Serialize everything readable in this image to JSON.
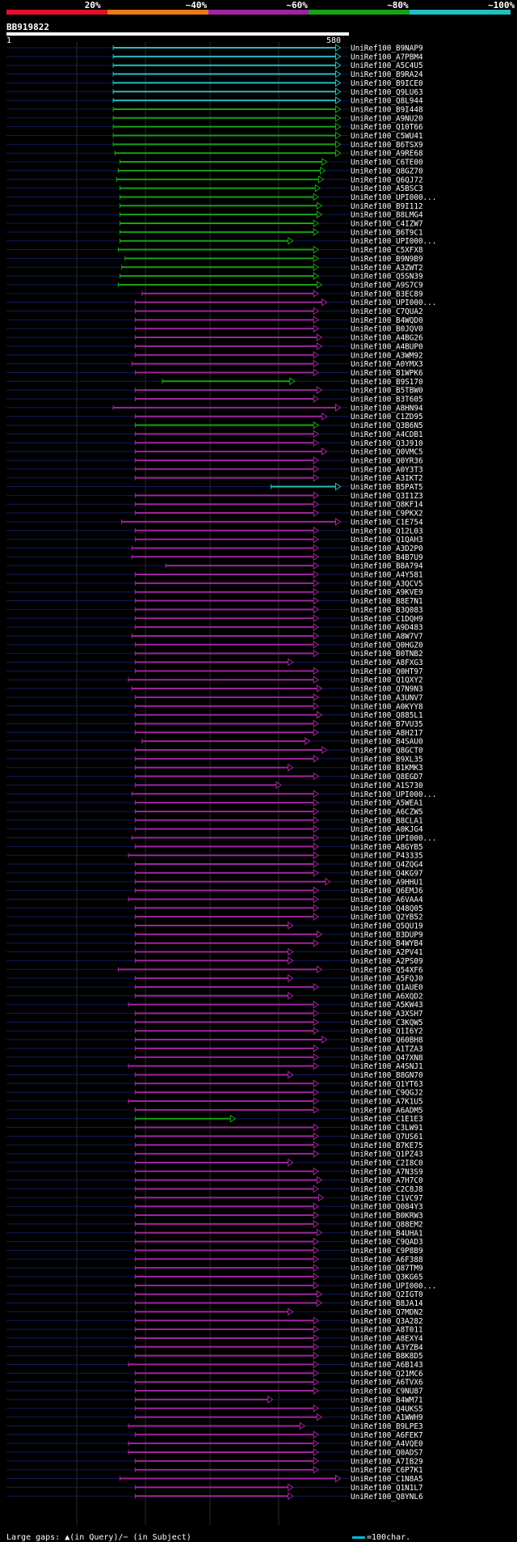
{
  "legend": {
    "labels": [
      "20%",
      "~40%",
      "~60%",
      "~80%",
      "~100%"
    ],
    "colors": [
      "#e0112b",
      "#e87a1a",
      "#a0249f",
      "#17a116",
      "#22bfbf"
    ]
  },
  "query": {
    "name": "BB919822",
    "start": "1",
    "end": "580"
  },
  "hits": [
    {
      "label": "UniRef100_B9NAP9",
      "start": 0.305,
      "end": 0.975,
      "color": "#22bfbf"
    },
    {
      "label": "UniRef100_A7PBM4",
      "start": 0.305,
      "end": 0.975,
      "color": "#22bfbf"
    },
    {
      "label": "UniRef100_A5C4U5",
      "start": 0.305,
      "end": 0.975,
      "color": "#22bfbf"
    },
    {
      "label": "UniRef100_B9RA24",
      "start": 0.305,
      "end": 0.975,
      "color": "#22bfbf"
    },
    {
      "label": "UniRef100_B9ICE0",
      "start": 0.305,
      "end": 0.975,
      "color": "#22bfbf"
    },
    {
      "label": "UniRef100_Q9LU63",
      "start": 0.305,
      "end": 0.975,
      "color": "#22bfbf"
    },
    {
      "label": "UniRef100_Q8L944",
      "start": 0.305,
      "end": 0.975,
      "color": "#22bfbf"
    },
    {
      "label": "UniRef100_B9I448",
      "start": 0.305,
      "end": 0.975,
      "color": "#17a116"
    },
    {
      "label": "UniRef100_A9NU20",
      "start": 0.305,
      "end": 0.975,
      "color": "#17a116"
    },
    {
      "label": "UniRef100_Q10T66",
      "start": 0.305,
      "end": 0.975,
      "color": "#17a116"
    },
    {
      "label": "UniRef100_C5WU41",
      "start": 0.305,
      "end": 0.975,
      "color": "#17a116"
    },
    {
      "label": "UniRef100_B6TSX9",
      "start": 0.305,
      "end": 0.975,
      "color": "#17a116"
    },
    {
      "label": "UniRef100_A9RE68",
      "start": 0.31,
      "end": 0.975,
      "color": "#17a116"
    },
    {
      "label": "UniRef100_C6TE00",
      "start": 0.325,
      "end": 0.935,
      "color": "#17a116"
    },
    {
      "label": "UniRef100_Q8GZ70",
      "start": 0.32,
      "end": 0.93,
      "color": "#17a116"
    },
    {
      "label": "UniRef100_Q6QJ72",
      "start": 0.315,
      "end": 0.925,
      "color": "#17a116"
    },
    {
      "label": "UniRef100_A5BSC3",
      "start": 0.325,
      "end": 0.915,
      "color": "#17a116"
    },
    {
      "label": "UniRef100_UPI000...",
      "start": 0.325,
      "end": 0.91,
      "color": "#17a116"
    },
    {
      "label": "UniRef100_B9I112",
      "start": 0.325,
      "end": 0.92,
      "color": "#17a116"
    },
    {
      "label": "UniRef100_B8LMG4",
      "start": 0.325,
      "end": 0.92,
      "color": "#17a116"
    },
    {
      "label": "UniRef100_C4IZW7",
      "start": 0.325,
      "end": 0.91,
      "color": "#17a116"
    },
    {
      "label": "UniRef100_B6T9C1",
      "start": 0.325,
      "end": 0.91,
      "color": "#17a116"
    },
    {
      "label": "UniRef100_UPI000...",
      "start": 0.325,
      "end": 0.835,
      "color": "#17a116"
    },
    {
      "label": "UniRef100_C5XFX8",
      "start": 0.32,
      "end": 0.91,
      "color": "#17a116"
    },
    {
      "label": "UniRef100_B9N9B9",
      "start": 0.34,
      "end": 0.91,
      "color": "#17a116"
    },
    {
      "label": "UniRef100_A3ZWT2",
      "start": 0.33,
      "end": 0.91,
      "color": "#17a116"
    },
    {
      "label": "UniRef100_Q5SN39",
      "start": 0.325,
      "end": 0.91,
      "color": "#17a116"
    },
    {
      "label": "UniRef100_A9S7C9",
      "start": 0.32,
      "end": 0.92,
      "color": "#17a116"
    },
    {
      "label": "UniRef100_B3EC89",
      "start": 0.39,
      "end": 0.91,
      "color": "#a0249f"
    },
    {
      "label": "UniRef100_UPI000...",
      "start": 0.37,
      "end": 0.935,
      "color": "#a0249f"
    },
    {
      "label": "UniRef100_C7QUA2",
      "start": 0.37,
      "end": 0.91,
      "color": "#a0249f"
    },
    {
      "label": "UniRef100_B4WQD0",
      "start": 0.37,
      "end": 0.91,
      "color": "#a0249f"
    },
    {
      "label": "UniRef100_B0JQV0",
      "start": 0.37,
      "end": 0.91,
      "color": "#a0249f"
    },
    {
      "label": "UniRef100_A4BG26",
      "start": 0.37,
      "end": 0.92,
      "color": "#a0249f"
    },
    {
      "label": "UniRef100_A4BUP0",
      "start": 0.37,
      "end": 0.92,
      "color": "#a0249f"
    },
    {
      "label": "UniRef100_A3WM92",
      "start": 0.37,
      "end": 0.91,
      "color": "#a0249f"
    },
    {
      "label": "UniRef100_A0YMX3",
      "start": 0.36,
      "end": 0.91,
      "color": "#a0249f"
    },
    {
      "label": "UniRef100_B1WPK6",
      "start": 0.37,
      "end": 0.91,
      "color": "#a0249f"
    },
    {
      "label": "UniRef100_B9S170",
      "start": 0.45,
      "end": 0.84,
      "color": "#17a116"
    },
    {
      "label": "UniRef100_B5TBW0",
      "start": 0.37,
      "end": 0.92,
      "color": "#a0249f"
    },
    {
      "label": "UniRef100_B3T605",
      "start": 0.37,
      "end": 0.91,
      "color": "#a0249f"
    },
    {
      "label": "UniRef100_A8HN94",
      "start": 0.305,
      "end": 0.975,
      "color": "#a0249f"
    },
    {
      "label": "UniRef100_C1ZD95",
      "start": 0.37,
      "end": 0.935,
      "color": "#a0249f"
    },
    {
      "label": "UniRef100_Q3B6N5",
      "start": 0.37,
      "end": 0.91,
      "color": "#17a116"
    },
    {
      "label": "UniRef100_A4CDB1",
      "start": 0.37,
      "end": 0.91,
      "color": "#a0249f"
    },
    {
      "label": "UniRef100_Q3J910",
      "start": 0.37,
      "end": 0.91,
      "color": "#a0249f"
    },
    {
      "label": "UniRef100_Q0VMC5",
      "start": 0.37,
      "end": 0.935,
      "color": "#a0249f"
    },
    {
      "label": "UniRef100_Q0YR36",
      "start": 0.37,
      "end": 0.91,
      "color": "#a0249f"
    },
    {
      "label": "UniRef100_A0Y3T3",
      "start": 0.37,
      "end": 0.91,
      "color": "#a0249f"
    },
    {
      "label": "UniRef100_A3IKT2",
      "start": 0.37,
      "end": 0.91,
      "color": "#a0249f"
    },
    {
      "label": "UniRef100_B5PAT5",
      "start": 0.77,
      "end": 0.975,
      "color": "#22bfbf"
    },
    {
      "label": "UniRef100_Q3I1Z3",
      "start": 0.37,
      "end": 0.91,
      "color": "#a0249f"
    },
    {
      "label": "UniRef100_Q8KF14",
      "start": 0.37,
      "end": 0.91,
      "color": "#a0249f"
    },
    {
      "label": "UniRef100_C9PKX2",
      "start": 0.37,
      "end": 0.91,
      "color": "#a0249f"
    },
    {
      "label": "UniRef100_C1E754",
      "start": 0.33,
      "end": 0.975,
      "color": "#a0249f"
    },
    {
      "label": "UniRef100_Q12L03",
      "start": 0.37,
      "end": 0.91,
      "color": "#a0249f"
    },
    {
      "label": "UniRef100_Q1QAH3",
      "start": 0.37,
      "end": 0.91,
      "color": "#a0249f"
    },
    {
      "label": "UniRef100_A3D2P0",
      "start": 0.36,
      "end": 0.91,
      "color": "#a0249f"
    },
    {
      "label": "UniRef100_B4B7U9",
      "start": 0.36,
      "end": 0.91,
      "color": "#a0249f"
    },
    {
      "label": "UniRef100_B8A794",
      "start": 0.46,
      "end": 0.91,
      "color": "#a0249f"
    },
    {
      "label": "UniRef100_A4Y581",
      "start": 0.37,
      "end": 0.91,
      "color": "#a0249f"
    },
    {
      "label": "UniRef100_A3QCV5",
      "start": 0.37,
      "end": 0.91,
      "color": "#a0249f"
    },
    {
      "label": "UniRef100_A9KVE9",
      "start": 0.37,
      "end": 0.91,
      "color": "#a0249f"
    },
    {
      "label": "UniRef100_B8E7N1",
      "start": 0.37,
      "end": 0.91,
      "color": "#a0249f"
    },
    {
      "label": "UniRef100_B3Q083",
      "start": 0.37,
      "end": 0.91,
      "color": "#a0249f"
    },
    {
      "label": "UniRef100_C1DQH9",
      "start": 0.37,
      "end": 0.91,
      "color": "#a0249f"
    },
    {
      "label": "UniRef100_A9D483",
      "start": 0.37,
      "end": 0.91,
      "color": "#a0249f"
    },
    {
      "label": "UniRef100_A8W7V7",
      "start": 0.36,
      "end": 0.91,
      "color": "#a0249f"
    },
    {
      "label": "UniRef100_Q0HGZ0",
      "start": 0.37,
      "end": 0.91,
      "color": "#a0249f"
    },
    {
      "label": "UniRef100_B0TNB2",
      "start": 0.37,
      "end": 0.91,
      "color": "#a0249f"
    },
    {
      "label": "UniRef100_A8FXG3",
      "start": 0.37,
      "end": 0.835,
      "color": "#a0249f"
    },
    {
      "label": "UniRef100_Q0HT97",
      "start": 0.37,
      "end": 0.91,
      "color": "#a0249f"
    },
    {
      "label": "UniRef100_Q1QXY2",
      "start": 0.35,
      "end": 0.91,
      "color": "#a0249f"
    },
    {
      "label": "UniRef100_Q7N9N3",
      "start": 0.36,
      "end": 0.92,
      "color": "#a0249f"
    },
    {
      "label": "UniRef100_A3UNV7",
      "start": 0.37,
      "end": 0.91,
      "color": "#a0249f"
    },
    {
      "label": "UniRef100_A0KYY8",
      "start": 0.37,
      "end": 0.91,
      "color": "#a0249f"
    },
    {
      "label": "UniRef100_Q885L1",
      "start": 0.37,
      "end": 0.92,
      "color": "#a0249f"
    },
    {
      "label": "UniRef100_B7VU35",
      "start": 0.37,
      "end": 0.91,
      "color": "#a0249f"
    },
    {
      "label": "UniRef100_A8H217",
      "start": 0.37,
      "end": 0.91,
      "color": "#a0249f"
    },
    {
      "label": "UniRef100_B4SAU0",
      "start": 0.39,
      "end": 0.885,
      "color": "#a0249f"
    },
    {
      "label": "UniRef100_Q8GCT0",
      "start": 0.37,
      "end": 0.935,
      "color": "#a0249f"
    },
    {
      "label": "UniRef100_B9XL35",
      "start": 0.37,
      "end": 0.91,
      "color": "#a0249f"
    },
    {
      "label": "UniRef100_B1KMK3",
      "start": 0.37,
      "end": 0.835,
      "color": "#a0249f"
    },
    {
      "label": "UniRef100_Q8EGD7",
      "start": 0.37,
      "end": 0.91,
      "color": "#a0249f"
    },
    {
      "label": "UniRef100_A1S730",
      "start": 0.37,
      "end": 0.8,
      "color": "#a0249f"
    },
    {
      "label": "UniRef100_UPI000...",
      "start": 0.36,
      "end": 0.91,
      "color": "#a0249f"
    },
    {
      "label": "UniRef100_A5WEA1",
      "start": 0.37,
      "end": 0.91,
      "color": "#a0249f"
    },
    {
      "label": "UniRef100_A6CZW5",
      "start": 0.37,
      "end": 0.91,
      "color": "#a0249f"
    },
    {
      "label": "UniRef100_B8CLA1",
      "start": 0.37,
      "end": 0.91,
      "color": "#a0249f"
    },
    {
      "label": "UniRef100_A0KJG4",
      "start": 0.37,
      "end": 0.91,
      "color": "#a0249f"
    },
    {
      "label": "UniRef100_UPI000...",
      "start": 0.36,
      "end": 0.91,
      "color": "#a0249f"
    },
    {
      "label": "UniRef100_A8GYB5",
      "start": 0.37,
      "end": 0.91,
      "color": "#a0249f"
    },
    {
      "label": "UniRef100_P43335",
      "start": 0.35,
      "end": 0.91,
      "color": "#a0249f"
    },
    {
      "label": "UniRef100_Q4ZQG4",
      "start": 0.37,
      "end": 0.91,
      "color": "#a0249f"
    },
    {
      "label": "UniRef100_Q4KG97",
      "start": 0.37,
      "end": 0.91,
      "color": "#a0249f"
    },
    {
      "label": "UniRef100_A9HHU1",
      "start": 0.37,
      "end": 0.945,
      "color": "#a0249f"
    },
    {
      "label": "UniRef100_Q6EMJ6",
      "start": 0.37,
      "end": 0.91,
      "color": "#a0249f"
    },
    {
      "label": "UniRef100_A6VAA4",
      "start": 0.35,
      "end": 0.91,
      "color": "#a0249f"
    },
    {
      "label": "UniRef100_Q48Q05",
      "start": 0.37,
      "end": 0.91,
      "color": "#a0249f"
    },
    {
      "label": "UniRef100_Q2YB52",
      "start": 0.37,
      "end": 0.91,
      "color": "#a0249f"
    },
    {
      "label": "UniRef100_Q5QU19",
      "start": 0.37,
      "end": 0.835,
      "color": "#a0249f"
    },
    {
      "label": "UniRef100_B3DUP9",
      "start": 0.37,
      "end": 0.92,
      "color": "#a0249f"
    },
    {
      "label": "UniRef100_B4WYB4",
      "start": 0.37,
      "end": 0.91,
      "color": "#a0249f"
    },
    {
      "label": "UniRef100_A2PV41",
      "start": 0.37,
      "end": 0.835,
      "color": "#a0249f"
    },
    {
      "label": "UniRef100_A2PS09",
      "start": 0.37,
      "end": 0.835,
      "color": "#a0249f"
    },
    {
      "label": "UniRef100_Q54XF6",
      "start": 0.32,
      "end": 0.92,
      "color": "#a0249f"
    },
    {
      "label": "UniRef100_A5FQJ0",
      "start": 0.37,
      "end": 0.835,
      "color": "#a0249f"
    },
    {
      "label": "UniRef100_Q1AUE0",
      "start": 0.37,
      "end": 0.91,
      "color": "#a0249f"
    },
    {
      "label": "UniRef100_A6XQD2",
      "start": 0.37,
      "end": 0.835,
      "color": "#a0249f"
    },
    {
      "label": "UniRef100_A5KW43",
      "start": 0.35,
      "end": 0.91,
      "color": "#a0249f"
    },
    {
      "label": "UniRef100_A3XSH7",
      "start": 0.37,
      "end": 0.91,
      "color": "#a0249f"
    },
    {
      "label": "UniRef100_C3KQW5",
      "start": 0.37,
      "end": 0.91,
      "color": "#a0249f"
    },
    {
      "label": "UniRef100_Q1I6Y2",
      "start": 0.37,
      "end": 0.91,
      "color": "#a0249f"
    },
    {
      "label": "UniRef100_Q60BH8",
      "start": 0.37,
      "end": 0.935,
      "color": "#a0249f"
    },
    {
      "label": "UniRef100_A1TZA3",
      "start": 0.37,
      "end": 0.91,
      "color": "#a0249f"
    },
    {
      "label": "UniRef100_Q47XN8",
      "start": 0.37,
      "end": 0.91,
      "color": "#a0249f"
    },
    {
      "label": "UniRef100_A4SNJ1",
      "start": 0.35,
      "end": 0.91,
      "color": "#a0249f"
    },
    {
      "label": "UniRef100_B8GN70",
      "start": 0.37,
      "end": 0.835,
      "color": "#a0249f"
    },
    {
      "label": "UniRef100_Q1YT63",
      "start": 0.37,
      "end": 0.91,
      "color": "#a0249f"
    },
    {
      "label": "UniRef100_C9QGJ2",
      "start": 0.37,
      "end": 0.91,
      "color": "#a0249f"
    },
    {
      "label": "UniRef100_A7K1U5",
      "start": 0.35,
      "end": 0.91,
      "color": "#a0249f"
    },
    {
      "label": "UniRef100_A6ADM5",
      "start": 0.37,
      "end": 0.91,
      "color": "#a0249f"
    },
    {
      "label": "UniRef100_C1E1E3",
      "start": 0.37,
      "end": 0.665,
      "color": "#17a116"
    },
    {
      "label": "UniRef100_C3LW91",
      "start": 0.37,
      "end": 0.91,
      "color": "#a0249f"
    },
    {
      "label": "UniRef100_Q7US61",
      "start": 0.37,
      "end": 0.91,
      "color": "#a0249f"
    },
    {
      "label": "UniRef100_B7KE75",
      "start": 0.37,
      "end": 0.91,
      "color": "#a0249f"
    },
    {
      "label": "UniRef100_Q1PZ43",
      "start": 0.37,
      "end": 0.91,
      "color": "#a0249f"
    },
    {
      "label": "UniRef100_C2I8C0",
      "start": 0.37,
      "end": 0.835,
      "color": "#a0249f"
    },
    {
      "label": "UniRef100_A7N3S9",
      "start": 0.37,
      "end": 0.91,
      "color": "#a0249f"
    },
    {
      "label": "UniRef100_A7H7C0",
      "start": 0.37,
      "end": 0.92,
      "color": "#a0249f"
    },
    {
      "label": "UniRef100_C2C8J8",
      "start": 0.37,
      "end": 0.91,
      "color": "#a0249f"
    },
    {
      "label": "UniRef100_C1VC97",
      "start": 0.37,
      "end": 0.925,
      "color": "#a0249f"
    },
    {
      "label": "UniRef100_Q084Y3",
      "start": 0.37,
      "end": 0.91,
      "color": "#a0249f"
    },
    {
      "label": "UniRef100_B0KRW3",
      "start": 0.37,
      "end": 0.91,
      "color": "#a0249f"
    },
    {
      "label": "UniRef100_Q88EM2",
      "start": 0.37,
      "end": 0.91,
      "color": "#a0249f"
    },
    {
      "label": "UniRef100_B4UHA1",
      "start": 0.37,
      "end": 0.92,
      "color": "#a0249f"
    },
    {
      "label": "UniRef100_C9QAD3",
      "start": 0.37,
      "end": 0.91,
      "color": "#a0249f"
    },
    {
      "label": "UniRef100_C9P8B9",
      "start": 0.37,
      "end": 0.91,
      "color": "#a0249f"
    },
    {
      "label": "UniRef100_A6F388",
      "start": 0.37,
      "end": 0.91,
      "color": "#a0249f"
    },
    {
      "label": "UniRef100_Q87TM9",
      "start": 0.37,
      "end": 0.91,
      "color": "#a0249f"
    },
    {
      "label": "UniRef100_Q3KG65",
      "start": 0.37,
      "end": 0.91,
      "color": "#a0249f"
    },
    {
      "label": "UniRef100_UPI000...",
      "start": 0.37,
      "end": 0.91,
      "color": "#a0249f"
    },
    {
      "label": "UniRef100_Q2IGT0",
      "start": 0.37,
      "end": 0.92,
      "color": "#a0249f"
    },
    {
      "label": "UniRef100_B8JA14",
      "start": 0.37,
      "end": 0.92,
      "color": "#a0249f"
    },
    {
      "label": "UniRef100_Q7MDN2",
      "start": 0.37,
      "end": 0.835,
      "color": "#a0249f"
    },
    {
      "label": "UniRef100_Q3A282",
      "start": 0.37,
      "end": 0.91,
      "color": "#a0249f"
    },
    {
      "label": "UniRef100_A8T011",
      "start": 0.37,
      "end": 0.91,
      "color": "#a0249f"
    },
    {
      "label": "UniRef100_A8EXY4",
      "start": 0.37,
      "end": 0.91,
      "color": "#a0249f"
    },
    {
      "label": "UniRef100_A3YZB4",
      "start": 0.37,
      "end": 0.91,
      "color": "#a0249f"
    },
    {
      "label": "UniRef100_B8K8D5",
      "start": 0.37,
      "end": 0.91,
      "color": "#a0249f"
    },
    {
      "label": "UniRef100_A6B143",
      "start": 0.35,
      "end": 0.91,
      "color": "#a0249f"
    },
    {
      "label": "UniRef100_Q21MC6",
      "start": 0.37,
      "end": 0.91,
      "color": "#a0249f"
    },
    {
      "label": "UniRef100_A6TVX6",
      "start": 0.37,
      "end": 0.91,
      "color": "#a0249f"
    },
    {
      "label": "UniRef100_C9NU87",
      "start": 0.37,
      "end": 0.91,
      "color": "#a0249f"
    },
    {
      "label": "UniRef100_B4WM71",
      "start": 0.37,
      "end": 0.775,
      "color": "#a0249f"
    },
    {
      "label": "UniRef100_Q4UKS5",
      "start": 0.37,
      "end": 0.91,
      "color": "#a0249f"
    },
    {
      "label": "UniRef100_A1WWH9",
      "start": 0.37,
      "end": 0.92,
      "color": "#a0249f"
    },
    {
      "label": "UniRef100_B9LPE3",
      "start": 0.35,
      "end": 0.87,
      "color": "#a0249f"
    },
    {
      "label": "UniRef100_A6FEK7",
      "start": 0.37,
      "end": 0.91,
      "color": "#a0249f"
    },
    {
      "label": "UniRef100_A4VQE0",
      "start": 0.35,
      "end": 0.91,
      "color": "#a0249f"
    },
    {
      "label": "UniRef100_Q0ADS7",
      "start": 0.35,
      "end": 0.91,
      "color": "#a0249f"
    },
    {
      "label": "UniRef100_A7IB29",
      "start": 0.37,
      "end": 0.91,
      "color": "#a0249f"
    },
    {
      "label": "UniRef100_C6P7K1",
      "start": 0.37,
      "end": 0.91,
      "color": "#a0249f"
    },
    {
      "label": "UniRef100_C1N8A5",
      "start": 0.325,
      "end": 0.975,
      "color": "#a0249f"
    },
    {
      "label": "UniRef100_Q1N1L7",
      "start": 0.37,
      "end": 0.835,
      "color": "#a0249f"
    },
    {
      "label": "UniRef100_Q8YNL6",
      "start": 0.37,
      "end": 0.835,
      "color": "#a0249f"
    }
  ],
  "footer": {
    "text": "Large gaps: ▲(in Query)/− (in Subject)",
    "key_text": "=100char."
  }
}
